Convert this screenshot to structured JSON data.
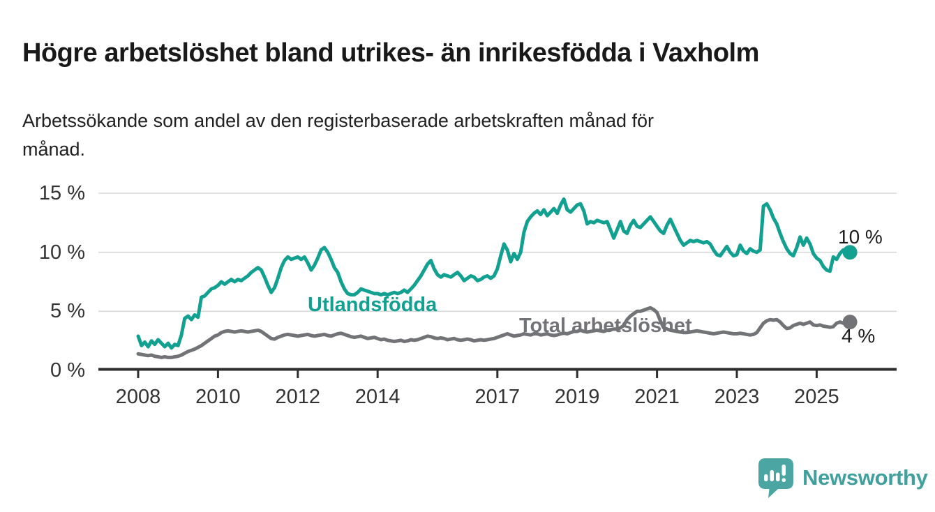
{
  "header": {
    "title": "Högre arbetslöshet bland utrikes- än inrikesfödda i Vaxholm",
    "subtitle_line1": "Arbetssökande som andel av den registerbaserade arbetskraften månad för",
    "subtitle_line2": "månad."
  },
  "chart_data": {
    "type": "line",
    "title": "Högre arbetslöshet bland utrikes- än inrikesfödda i Vaxholm",
    "subtitle": "Arbetssökande som andel av den registerbaserade arbetskraften månad för månad.",
    "unit": "%",
    "x_frequency": "monthly",
    "x_start": "2008-01",
    "x_end": "2025-11",
    "ylim": [
      0,
      15.6
    ],
    "grid": "horizontal",
    "legend_position": "inline-labels",
    "yticks": {
      "values": [
        0,
        5,
        10,
        15
      ],
      "labels": [
        "0 %",
        "5 %",
        "10 %",
        "15 %"
      ]
    },
    "xticks": {
      "years": [
        2008,
        2010,
        2012,
        2014,
        2017,
        2019,
        2021,
        2023,
        2025
      ],
      "labels": [
        "2008",
        "2010",
        "2012",
        "2014",
        "2017",
        "2019",
        "2021",
        "2023",
        "2025"
      ]
    },
    "series": [
      {
        "name": "Utlandsfödda",
        "color": "#12a091",
        "end_label": "10 %",
        "end_value": 10.0,
        "values": [
          2.9,
          2.1,
          2.4,
          2.0,
          2.5,
          2.2,
          2.6,
          2.3,
          2.0,
          2.3,
          1.9,
          2.2,
          2.1,
          3.0,
          4.4,
          4.6,
          4.3,
          4.7,
          4.5,
          6.2,
          6.3,
          6.6,
          6.9,
          7.0,
          7.2,
          7.5,
          7.3,
          7.5,
          7.7,
          7.5,
          7.7,
          7.6,
          7.8,
          8.0,
          8.3,
          8.5,
          8.7,
          8.5,
          7.9,
          7.2,
          6.6,
          7.0,
          7.8,
          8.7,
          9.3,
          9.6,
          9.4,
          9.5,
          9.6,
          9.4,
          9.6,
          9.1,
          8.5,
          8.9,
          9.5,
          10.2,
          10.4,
          10.0,
          9.4,
          8.7,
          8.3,
          7.5,
          6.9,
          6.5,
          6.4,
          6.4,
          6.6,
          6.9,
          6.8,
          6.7,
          6.6,
          6.5,
          6.5,
          6.4,
          6.5,
          6.4,
          6.5,
          6.6,
          6.5,
          6.6,
          6.8,
          6.6,
          6.9,
          7.2,
          7.6,
          8.0,
          8.5,
          9.0,
          9.3,
          8.6,
          8.1,
          7.9,
          8.1,
          8.0,
          7.9,
          8.1,
          8.3,
          8.0,
          7.6,
          7.8,
          8.0,
          7.9,
          7.6,
          7.7,
          7.9,
          8.0,
          7.8,
          8.0,
          8.6,
          9.7,
          10.7,
          10.2,
          9.2,
          9.9,
          9.4,
          10.0,
          11.7,
          12.6,
          13.0,
          13.3,
          13.5,
          13.2,
          13.6,
          13.1,
          13.4,
          13.7,
          13.3,
          14.0,
          14.5,
          13.6,
          13.4,
          13.7,
          14.0,
          14.1,
          13.5,
          12.4,
          12.6,
          12.5,
          12.7,
          12.6,
          12.5,
          12.6,
          11.9,
          11.2,
          11.9,
          12.6,
          11.8,
          11.6,
          12.3,
          12.7,
          12.2,
          12.1,
          12.4,
          12.7,
          13.0,
          12.6,
          12.2,
          11.8,
          11.6,
          12.3,
          12.8,
          12.2,
          11.6,
          11.0,
          10.6,
          10.8,
          11.0,
          10.9,
          11.0,
          10.9,
          10.8,
          10.9,
          10.7,
          10.2,
          9.8,
          9.7,
          10.1,
          10.5,
          10.0,
          9.7,
          9.8,
          10.6,
          10.1,
          9.9,
          10.3,
          10.1,
          10.0,
          10.2,
          13.9,
          14.1,
          13.6,
          12.9,
          12.4,
          11.6,
          10.9,
          10.3,
          9.9,
          9.7,
          10.4,
          11.3,
          10.6,
          11.2,
          10.7,
          9.9,
          9.5,
          9.3,
          8.8,
          8.5,
          8.4,
          9.6,
          9.4,
          9.9,
          10.2,
          10.0,
          10.0
        ]
      },
      {
        "name": "Total arbetslöshet",
        "color": "#727377",
        "end_label": "4 %",
        "end_value": 4.1,
        "values": [
          1.4,
          1.35,
          1.3,
          1.25,
          1.3,
          1.2,
          1.15,
          1.1,
          1.15,
          1.1,
          1.1,
          1.15,
          1.2,
          1.3,
          1.45,
          1.6,
          1.7,
          1.8,
          1.95,
          2.1,
          2.3,
          2.5,
          2.7,
          2.9,
          3.0,
          3.2,
          3.3,
          3.35,
          3.3,
          3.25,
          3.3,
          3.35,
          3.3,
          3.25,
          3.3,
          3.35,
          3.4,
          3.3,
          3.1,
          2.9,
          2.7,
          2.65,
          2.8,
          2.9,
          3.0,
          3.05,
          3.0,
          2.95,
          2.9,
          2.95,
          3.0,
          3.05,
          2.95,
          2.9,
          2.95,
          3.0,
          3.05,
          2.95,
          2.9,
          3.0,
          3.1,
          3.15,
          3.05,
          2.95,
          2.85,
          2.8,
          2.85,
          2.9,
          2.8,
          2.7,
          2.75,
          2.8,
          2.7,
          2.6,
          2.65,
          2.55,
          2.5,
          2.45,
          2.5,
          2.55,
          2.45,
          2.5,
          2.6,
          2.55,
          2.6,
          2.7,
          2.8,
          2.9,
          2.85,
          2.75,
          2.7,
          2.75,
          2.7,
          2.6,
          2.65,
          2.7,
          2.6,
          2.55,
          2.6,
          2.65,
          2.6,
          2.5,
          2.55,
          2.6,
          2.55,
          2.6,
          2.65,
          2.7,
          2.8,
          2.9,
          3.0,
          3.1,
          3.0,
          2.9,
          2.95,
          3.0,
          3.1,
          3.05,
          3.0,
          3.1,
          3.1,
          3.0,
          3.05,
          3.1,
          3.0,
          2.95,
          3.0,
          3.1,
          3.15,
          3.1,
          3.2,
          3.3,
          3.3,
          3.4,
          3.3,
          3.25,
          3.3,
          3.35,
          3.4,
          3.35,
          3.3,
          3.4,
          3.45,
          3.5,
          3.5,
          3.6,
          3.8,
          4.3,
          4.6,
          4.8,
          5.0,
          5.0,
          5.1,
          5.2,
          5.3,
          5.15,
          4.9,
          4.2,
          3.6,
          3.5,
          3.4,
          3.35,
          3.3,
          3.25,
          3.2,
          3.2,
          3.25,
          3.3,
          3.35,
          3.3,
          3.25,
          3.2,
          3.15,
          3.1,
          3.15,
          3.2,
          3.25,
          3.2,
          3.15,
          3.1,
          3.1,
          3.15,
          3.1,
          3.05,
          3.0,
          3.05,
          3.2,
          3.6,
          4.0,
          4.2,
          4.3,
          4.25,
          4.3,
          4.1,
          3.8,
          3.55,
          3.6,
          3.8,
          3.9,
          4.0,
          3.9,
          4.0,
          4.1,
          3.85,
          3.8,
          3.85,
          3.75,
          3.7,
          3.65,
          3.7,
          4.0,
          4.1,
          4.0,
          4.0,
          4.1
        ]
      }
    ],
    "style": {
      "gridline_color": "#d8d8d8",
      "axis_color": "#2d2d2d",
      "text_color": "#333333"
    }
  },
  "footer": {
    "brand": "Newsworthy",
    "brand_color": "#3fa09e",
    "logo_icon": "bar-chart-exclamation-speech-bubble-icon",
    "logo_bubble_color": "#4ba5a3"
  }
}
